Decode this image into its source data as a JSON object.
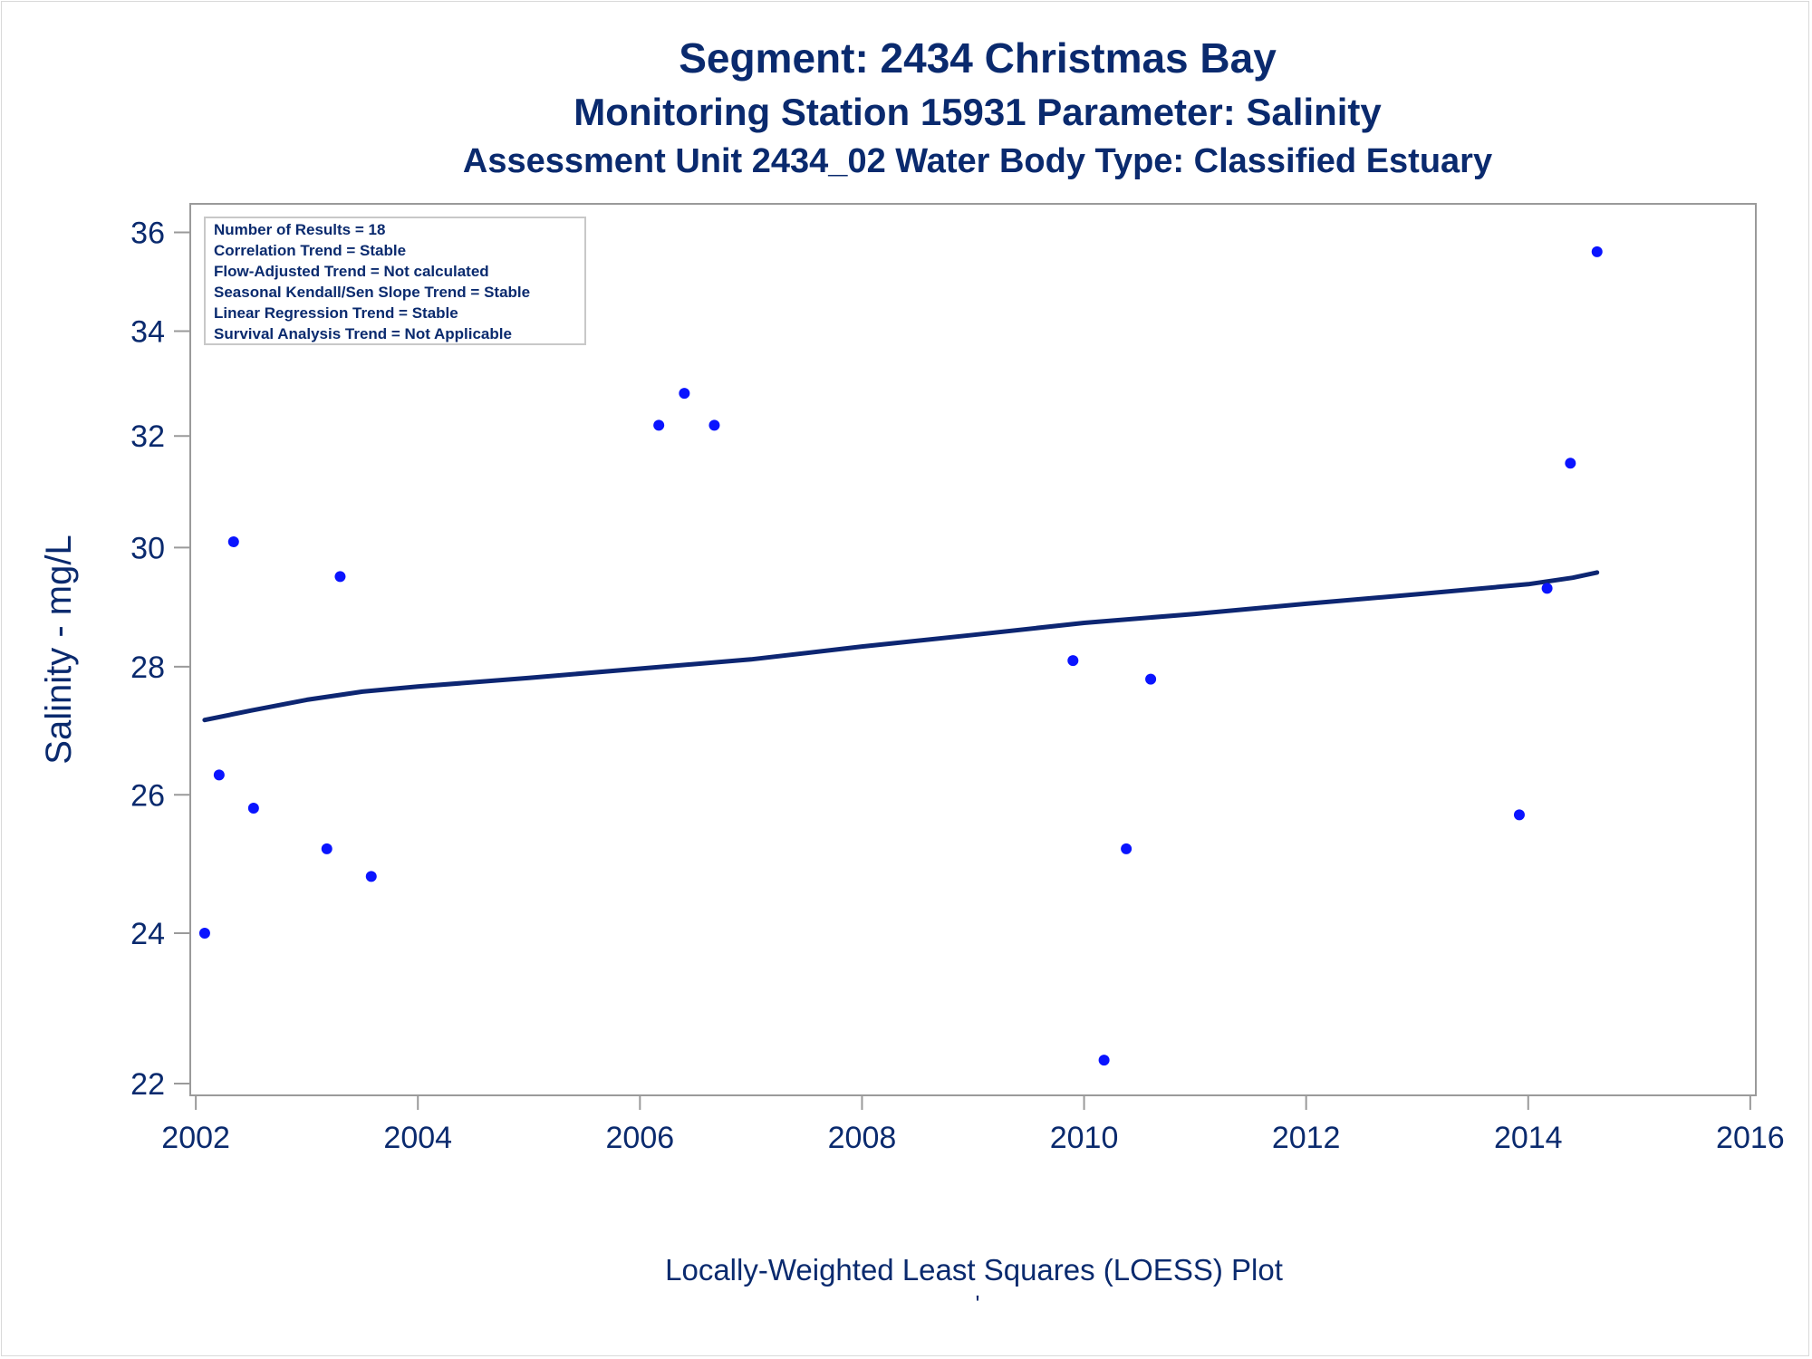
{
  "colors": {
    "text": "#0a2a6e",
    "line": "#0d2672",
    "point": "#0a14ff",
    "axis": "#9a9a9a",
    "stats_border": "#c8c8c8"
  },
  "chart_data": {
    "type": "scatter",
    "title": "Segment: 2434  Christmas Bay",
    "subtitle": "Monitoring Station 15931 Parameter: Salinity",
    "subtitle2": "Assessment Unit 2434_02   Water Body Type: Classified Estuary",
    "xlabel": "",
    "ylabel": "Salinity - mg/L",
    "footnote": "Locally-Weighted Least Squares (LOESS) Plot",
    "footnote_mark": "'",
    "y_scale": "log",
    "xlim": [
      2001.95,
      2016.05
    ],
    "ylim": [
      21.85,
      36.6
    ],
    "x_ticks": [
      2002,
      2004,
      2006,
      2008,
      2010,
      2012,
      2014,
      2016
    ],
    "y_ticks": [
      22,
      24,
      26,
      28,
      30,
      32,
      34,
      36
    ],
    "grid": false,
    "stats_box": {
      "position": "top-left",
      "lines": [
        "Number of Results = 18",
        "Correlation Trend = Stable",
        "Flow-Adjusted Trend = Not calculated",
        "Seasonal Kendall/Sen Slope Trend = Stable",
        "Linear Regression Trend = Stable",
        "Survival Analysis Trend = Not Applicable"
      ]
    },
    "series": [
      {
        "type": "scatter",
        "x": [
          2002.08,
          2002.21,
          2002.34,
          2002.52,
          2003.18,
          2003.3,
          2003.58,
          2006.17,
          2006.4,
          2006.67,
          2009.9,
          2010.18,
          2010.38,
          2010.6,
          2013.92,
          2014.17,
          2014.38,
          2014.62
        ],
        "y": [
          24.0,
          26.3,
          30.1,
          25.8,
          25.2,
          29.5,
          24.8,
          32.2,
          32.8,
          32.2,
          28.1,
          22.3,
          25.2,
          27.8,
          25.7,
          29.3,
          31.5,
          35.6
        ]
      },
      {
        "type": "line",
        "x": [
          2002.08,
          2002.5,
          2003.0,
          2003.5,
          2004.0,
          2005.0,
          2006.0,
          2007.0,
          2008.0,
          2009.0,
          2010.0,
          2011.0,
          2012.0,
          2013.0,
          2014.0,
          2014.4,
          2014.62
        ],
        "y": [
          27.15,
          27.3,
          27.47,
          27.6,
          27.68,
          27.82,
          27.97,
          28.12,
          28.33,
          28.52,
          28.72,
          28.87,
          29.04,
          29.2,
          29.37,
          29.48,
          29.57
        ]
      }
    ]
  }
}
